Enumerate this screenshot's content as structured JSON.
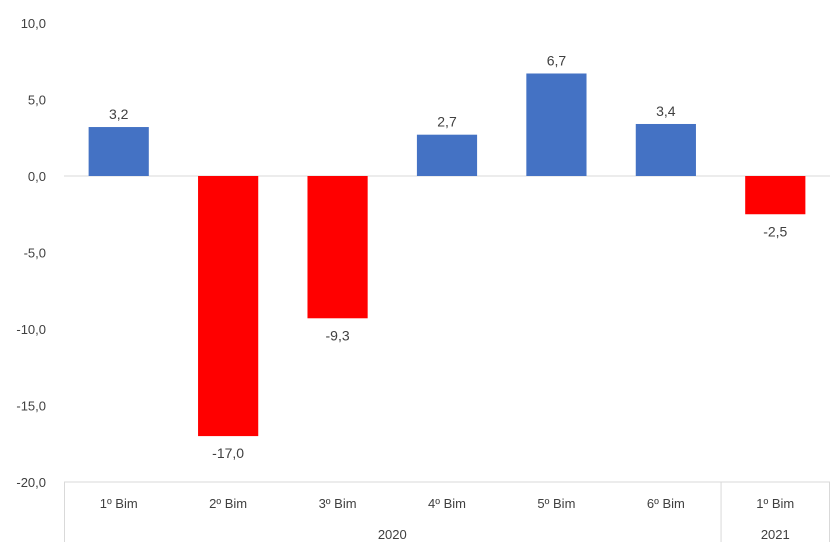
{
  "chart_data": {
    "type": "bar",
    "categories": [
      "1º Bim",
      "2º Bim",
      "3º Bim",
      "4º Bim",
      "5º Bim",
      "6º Bim",
      "1º Bim"
    ],
    "groups": [
      {
        "label": "2020",
        "count": 6
      },
      {
        "label": "2021",
        "count": 1
      }
    ],
    "values": [
      3.2,
      -17.0,
      -9.3,
      2.7,
      6.7,
      3.4,
      -2.5
    ],
    "data_labels": [
      "3,2",
      "-17,0",
      "-9,3",
      "2,7",
      "6,7",
      "3,4",
      "-2,5"
    ],
    "ylim": [
      -20,
      10
    ],
    "yticks": [
      -20,
      -15,
      -10,
      -5,
      0,
      5,
      10
    ],
    "ytick_labels": [
      "-20,0",
      "-15,0",
      "-10,0",
      "-5,0",
      "0,0",
      "5,0",
      "10,0"
    ],
    "colors": {
      "positive": "#4472C4",
      "negative": "#FF0000"
    },
    "grid": false,
    "legend": "none"
  }
}
